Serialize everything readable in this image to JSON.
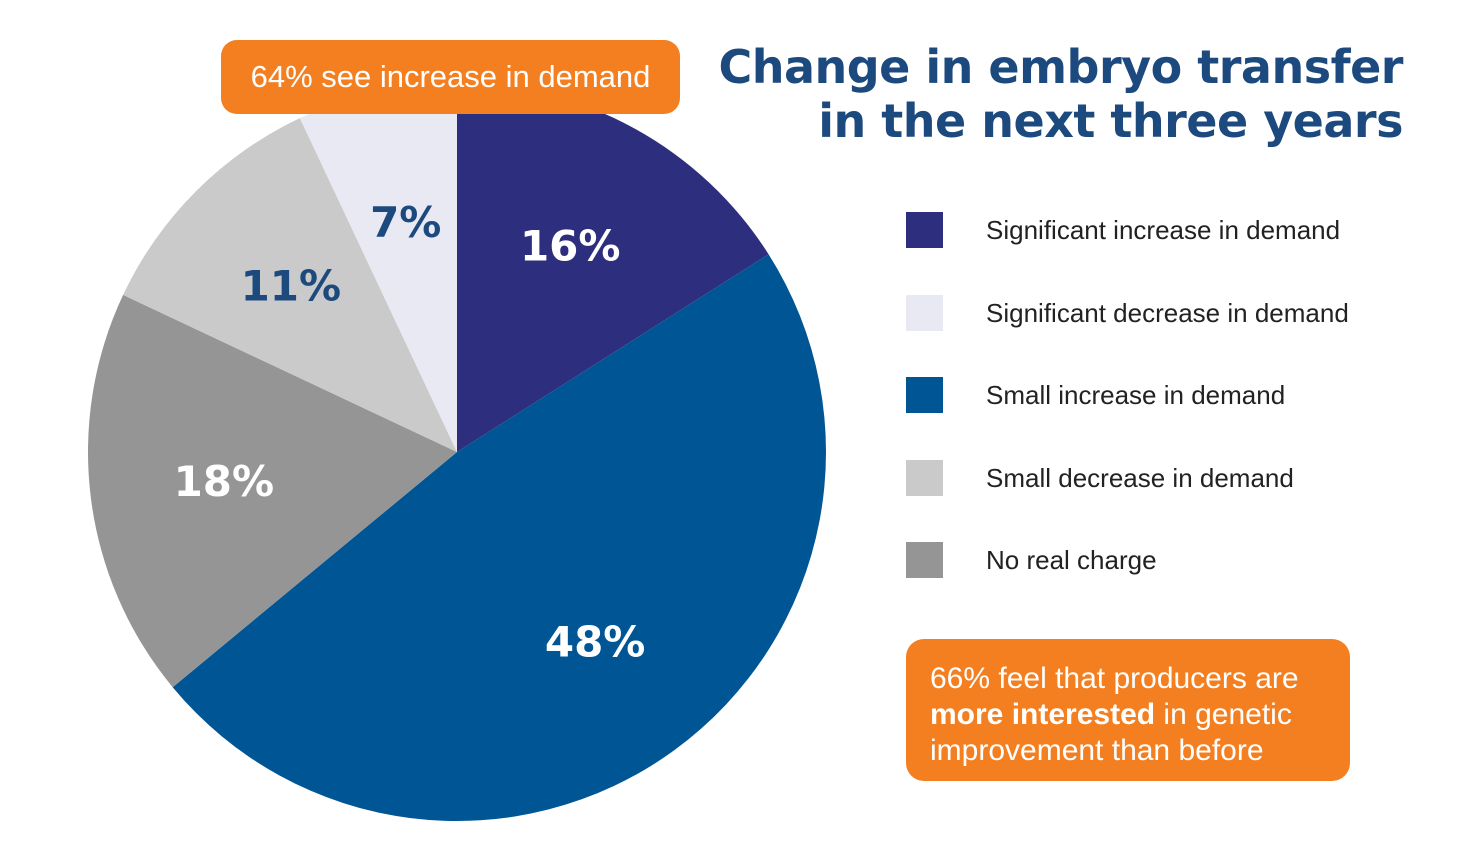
{
  "chart_data": {
    "type": "pie",
    "title": "Change in embryo transfer in the next three years",
    "slices": [
      {
        "name": "Significant increase in demand",
        "value": 16,
        "label": "16%",
        "color": "#2d2f7e",
        "label_color": "#ffffff"
      },
      {
        "name": "Small increase in demand",
        "value": 48,
        "label": "48%",
        "color": "#005595",
        "label_color": "#ffffff"
      },
      {
        "name": "No real charge",
        "value": 18,
        "label": "18%",
        "color": "#959595",
        "label_color": "#ffffff"
      },
      {
        "name": "Small decrease in demand",
        "value": 11,
        "label": "11%",
        "color": "#cacaca",
        "label_color": "#1d4a7e"
      },
      {
        "name": "Significant decrease in demand",
        "value": 7,
        "label": "7%",
        "color": "#e9e9f3",
        "label_color": "#1d4a7e"
      }
    ]
  },
  "title": {
    "line1": "Change in embryo transfer",
    "line2": "in the next three years"
  },
  "legend": [
    {
      "label": "Significant increase in demand",
      "color": "#2d2f7e"
    },
    {
      "label": "Significant decrease in demand",
      "color": "#e9e9f3"
    },
    {
      "label": "Small increase in demand",
      "color": "#005595"
    },
    {
      "label": "Small decrease in demand",
      "color": "#cacaca"
    },
    {
      "label": "No real charge",
      "color": "#959595"
    }
  ],
  "callout_top": "64% see increase in demand",
  "callout_bottom": {
    "pre": "66% feel that producers are ",
    "bold": "more interested",
    "post": " in genetic improvement than before"
  }
}
